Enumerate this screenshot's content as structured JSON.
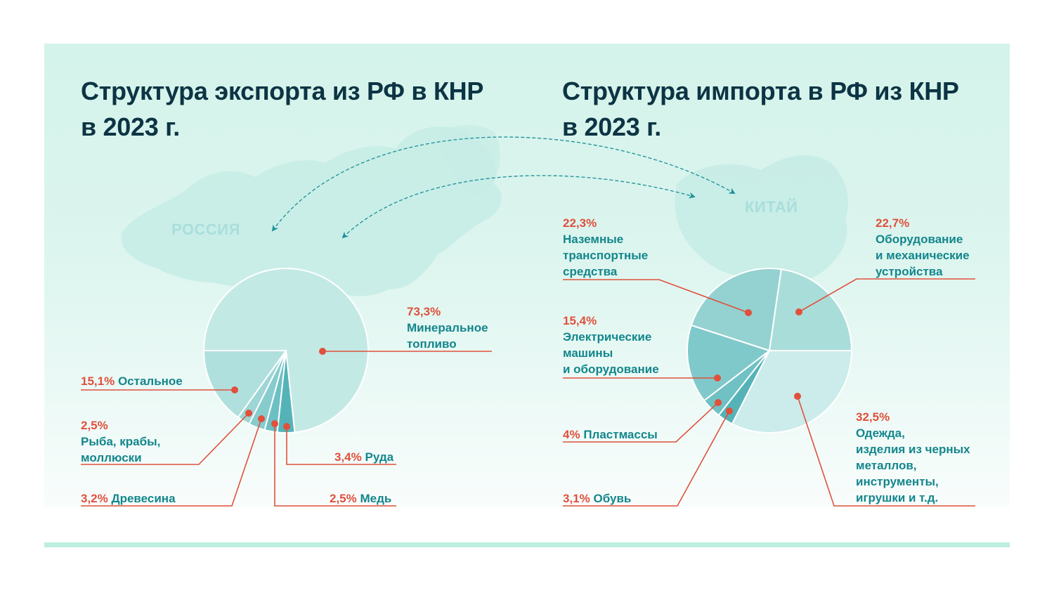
{
  "titles": {
    "export_line1": "Структура экспорта из РФ в КНР",
    "export_line2": "в 2023 г.",
    "import_line1": "Структура импорта в РФ из КНР",
    "import_line2": "в 2023 г."
  },
  "map_labels": {
    "russia": "РОССИЯ",
    "china": "КИТАЙ"
  },
  "colors": {
    "title": "#0d3444",
    "category_text": "#13868c",
    "percent_text": "#e0503b",
    "leader_line": "#e0503b",
    "arrow": "#1a8f98",
    "footer_bar": "#bdeee0"
  },
  "chart_data": [
    {
      "type": "pie",
      "title": "Структура экспорта из РФ в КНР в 2023 г.",
      "unit": "%",
      "slices": [
        {
          "label": "Минеральное топливо",
          "value": 73.3,
          "pct_text": "73,3%",
          "lines": [
            "Минеральное",
            "топливо"
          ],
          "color": "#c3e9e5"
        },
        {
          "label": "Руда",
          "value": 3.4,
          "pct_text": "3,4%",
          "lines": [
            "Руда"
          ],
          "color": "#55b3b8"
        },
        {
          "label": "Медь",
          "value": 2.5,
          "pct_text": "2,5%",
          "lines": [
            "Медь"
          ],
          "color": "#6cc0c3"
        },
        {
          "label": "Древесина",
          "value": 3.2,
          "pct_text": "3,2%",
          "lines": [
            "Древесина"
          ],
          "color": "#86cccd"
        },
        {
          "label": "Рыба, крабы, моллюски",
          "value": 2.5,
          "pct_text": "2,5%",
          "lines": [
            "Рыба, крабы,",
            "моллюски"
          ],
          "color": "#9dd6d5"
        },
        {
          "label": "Остальное",
          "value": 15.1,
          "pct_text": "15,1%",
          "lines": [
            "Остальное"
          ],
          "color": "#b0e0dd"
        }
      ]
    },
    {
      "type": "pie",
      "title": "Структура импорта в РФ из КНР в 2023 г.",
      "unit": "%",
      "slices": [
        {
          "label": "Одежда, изделия из черных металлов, инструменты, игрушки и т.д.",
          "value": 32.5,
          "pct_text": "32,5%",
          "lines": [
            "Одежда,",
            "изделия из черных",
            "металлов,",
            "инструменты,",
            "игрушки и т.д."
          ],
          "color": "#cbecea"
        },
        {
          "label": "Обувь",
          "value": 3.1,
          "pct_text": "3,1%",
          "lines": [
            "Обувь"
          ],
          "color": "#55b3b8"
        },
        {
          "label": "Пластмассы",
          "value": 4,
          "pct_text": "4%",
          "lines": [
            "Пластмассы"
          ],
          "color": "#6fc1c3"
        },
        {
          "label": "Электрические машины и оборудование",
          "value": 15.4,
          "pct_text": "15,4%",
          "lines": [
            "Электрические",
            "машины",
            "и оборудование"
          ],
          "color": "#80c9ca"
        },
        {
          "label": "Наземные транспортные средства",
          "value": 22.3,
          "pct_text": "22,3%",
          "lines": [
            "Наземные",
            "транспортные",
            "средства"
          ],
          "color": "#93d2d1"
        },
        {
          "label": "Оборудование и механические устройства",
          "value": 22.7,
          "pct_text": "22,7%",
          "lines": [
            "Оборудование",
            "и механические",
            "устройства"
          ],
          "color": "#a9ddda"
        }
      ]
    }
  ]
}
